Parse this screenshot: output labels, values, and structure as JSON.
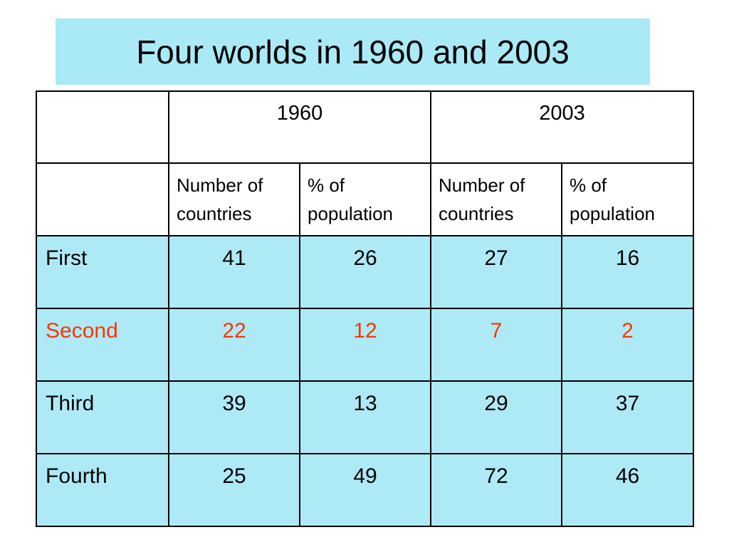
{
  "title": "Four worlds in 1960 and 2003",
  "table": {
    "groups": [
      "1960",
      "2003"
    ],
    "subheaders": [
      "Number of countries",
      "% of population",
      "Number of countries",
      "% of population"
    ],
    "rows": [
      [
        "First",
        41,
        26,
        27,
        16
      ],
      [
        "Second",
        22,
        12,
        7,
        2
      ],
      [
        "Third",
        39,
        13,
        29,
        37
      ],
      [
        "Fourth",
        25,
        49,
        72,
        46
      ]
    ]
  }
}
